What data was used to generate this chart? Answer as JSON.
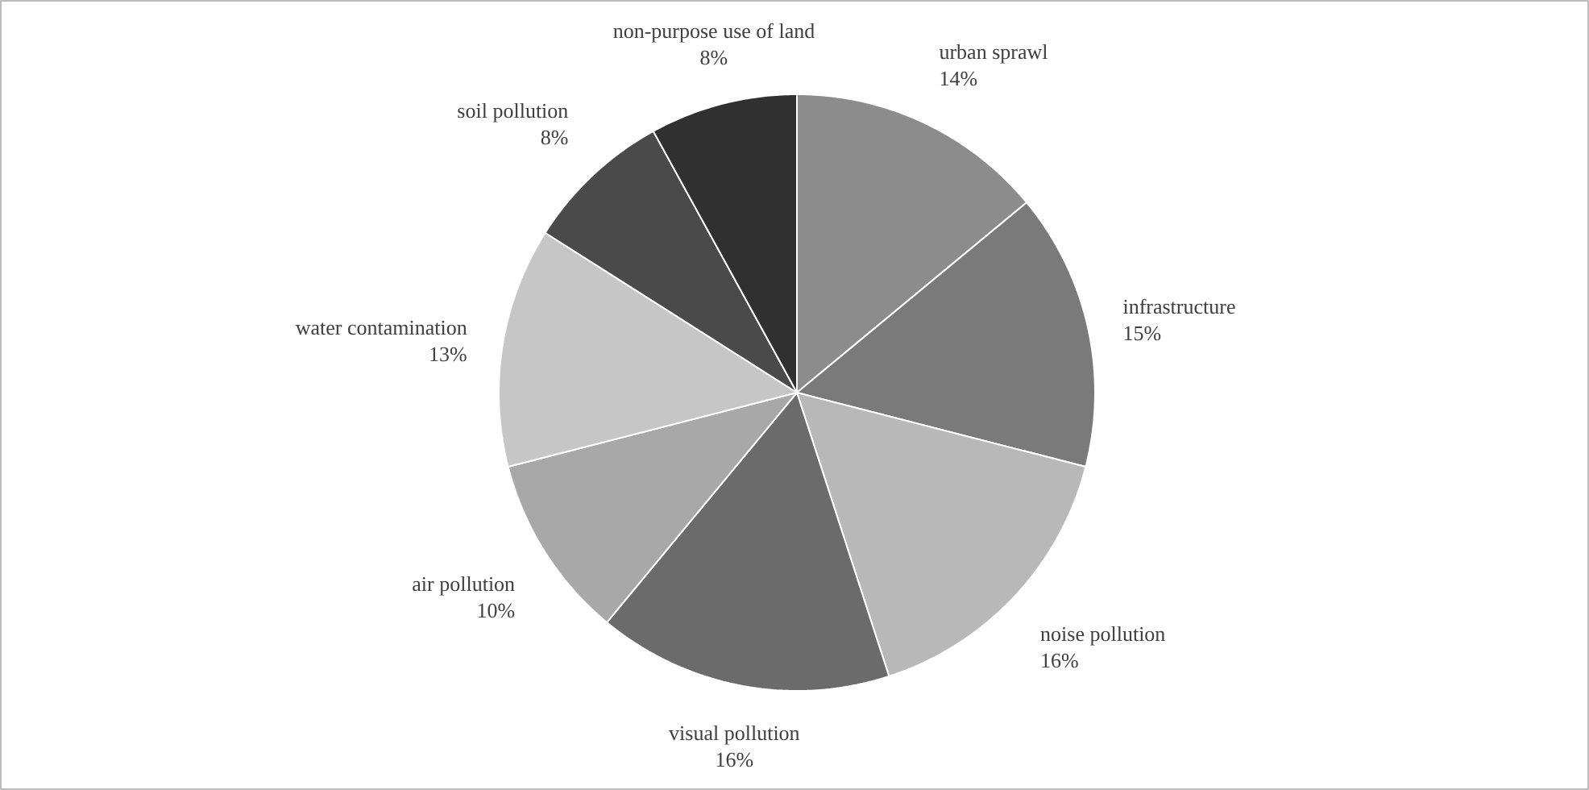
{
  "chart_data": {
    "type": "pie",
    "categories": [
      "urban sprawl",
      "infrastructure",
      "noise pollution",
      "visual pollution",
      "air pollution",
      "water contamination",
      "soil pollution",
      "non-purpose use of land"
    ],
    "values": [
      14,
      15,
      16,
      16,
      10,
      13,
      8,
      8
    ],
    "colors": [
      "#8c8c8c",
      "#7a7a7a",
      "#b8b8b8",
      "#6b6b6b",
      "#a8a8a8",
      "#c6c6c6",
      "#4a4a4a",
      "#303030"
    ],
    "value_labels": [
      "14%",
      "15%",
      "16%",
      "16%",
      "10%",
      "13%",
      "8%",
      "8%"
    ],
    "legend": false
  }
}
